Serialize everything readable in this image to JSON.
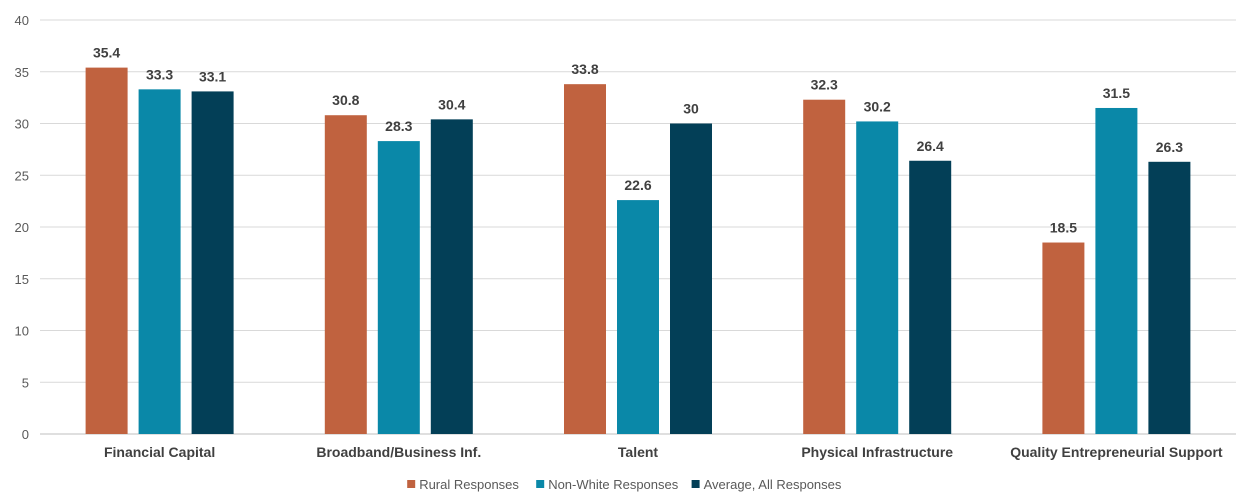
{
  "chart_data": {
    "type": "bar",
    "categories": [
      "Financial Capital",
      "Broadband/Business Inf.",
      "Talent",
      "Physical Infrastructure",
      "Quality Entrepreneurial Support"
    ],
    "series": [
      {
        "name": "Rural Responses",
        "values": [
          35.4,
          30.8,
          33.8,
          32.3,
          18.5
        ],
        "labels": [
          "35.4",
          "30.8",
          "33.8",
          "32.3",
          "18.5"
        ],
        "color": "#c0623f"
      },
      {
        "name": "Non-White Responses",
        "values": [
          33.3,
          28.3,
          22.6,
          30.2,
          31.5
        ],
        "labels": [
          "33.3",
          "28.3",
          "22.6",
          "30.2",
          "31.5"
        ],
        "color": "#0a88a8"
      },
      {
        "name": "Average, All Responses",
        "values": [
          33.1,
          30.4,
          30,
          26.4,
          26.3
        ],
        "labels": [
          "33.1",
          "30.4",
          "30",
          "26.4",
          "26.3"
        ],
        "color": "#033f57"
      }
    ],
    "ylim": [
      0,
      40
    ],
    "yticks": [
      0,
      5,
      10,
      15,
      20,
      25,
      30,
      35,
      40
    ],
    "grid": true,
    "legend_position": "bottom"
  }
}
